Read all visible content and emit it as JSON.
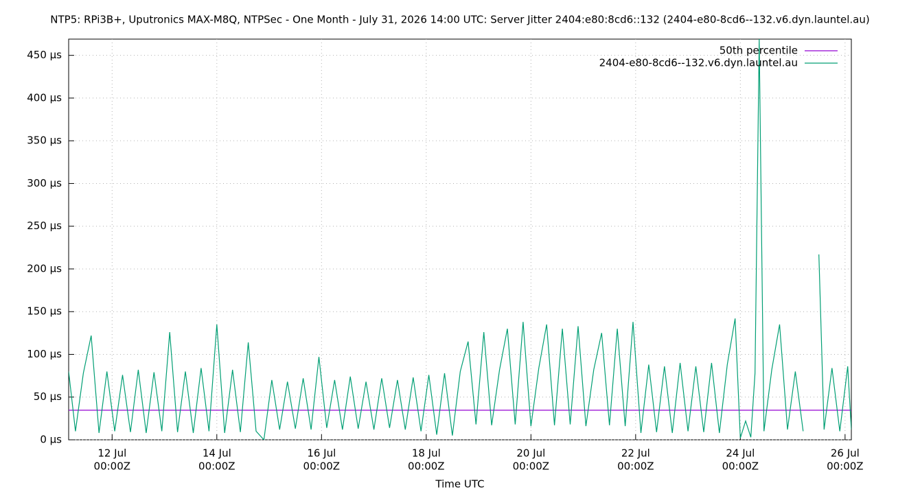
{
  "chart_data": {
    "type": "line",
    "title": "NTP5: RPi3B+, Uputronics MAX-M8Q, NTPSec - One Month - July 31, 2026 14:00 UTC: Server Jitter 2404:e80:8cd6::132 (2404-e80-8cd6--132.v6.dyn.launtel.au)",
    "x_label": "Time UTC",
    "xlim": [
      11.17,
      26.12
    ],
    "xticks": [
      {
        "value": 12,
        "label": [
          "12 Jul",
          "00:00Z"
        ]
      },
      {
        "value": 14,
        "label": [
          "14 Jul",
          "00:00Z"
        ]
      },
      {
        "value": 16,
        "label": [
          "16 Jul",
          "00:00Z"
        ]
      },
      {
        "value": 18,
        "label": [
          "18 Jul",
          "00:00Z"
        ]
      },
      {
        "value": 20,
        "label": [
          "20 Jul",
          "00:00Z"
        ]
      },
      {
        "value": 22,
        "label": [
          "22 Jul",
          "00:00Z"
        ]
      },
      {
        "value": 24,
        "label": [
          "24 Jul",
          "00:00Z"
        ]
      },
      {
        "value": 26,
        "label": [
          "26 Jul",
          "00:00Z"
        ]
      }
    ],
    "ylim": [
      0,
      469
    ],
    "yticks": [
      {
        "value": 0,
        "label": "0 µs"
      },
      {
        "value": 50,
        "label": "50 µs"
      },
      {
        "value": 100,
        "label": "100 µs"
      },
      {
        "value": 150,
        "label": "150 µs"
      },
      {
        "value": 200,
        "label": "200 µs"
      },
      {
        "value": 250,
        "label": "250 µs"
      },
      {
        "value": 300,
        "label": "300 µs"
      },
      {
        "value": 350,
        "label": "350 µs"
      },
      {
        "value": 400,
        "label": "400 µs"
      },
      {
        "value": 450,
        "label": "450 µs"
      }
    ],
    "grid": true,
    "legend": "upper right",
    "series": [
      {
        "name": "50th percentile",
        "color": "#9400d3",
        "x": [
          11.17,
          26.12
        ],
        "values": [
          34.6,
          34.6
        ]
      },
      {
        "name": "2404-e80-8cd6--132.v6.dyn.launtel.au",
        "color": "#009e73",
        "x": [
          11.17,
          11.3,
          11.45,
          11.6,
          11.75,
          11.9,
          12.05,
          12.2,
          12.35,
          12.5,
          12.65,
          12.8,
          12.95,
          13.1,
          13.25,
          13.4,
          13.55,
          13.7,
          13.85,
          14.0,
          14.15,
          14.3,
          14.45,
          14.6,
          14.75,
          14.9,
          15.05,
          15.2,
          15.35,
          15.5,
          15.65,
          15.8,
          15.95,
          16.1,
          16.25,
          16.4,
          16.55,
          16.7,
          16.85,
          17.0,
          17.15,
          17.3,
          17.45,
          17.6,
          17.75,
          17.9,
          18.05,
          18.2,
          18.35,
          18.5,
          18.65,
          18.8,
          18.95,
          19.1,
          19.25,
          19.4,
          19.55,
          19.7,
          19.85,
          20.0,
          20.15,
          20.3,
          20.45,
          20.6,
          20.75,
          20.9,
          21.05,
          21.2,
          21.35,
          21.5,
          21.65,
          21.8,
          21.95,
          22.1,
          22.25,
          22.4,
          22.55,
          22.7,
          22.85,
          23.0,
          23.15,
          23.3,
          23.45,
          23.6,
          23.75,
          23.9,
          24.0,
          24.1,
          24.2,
          24.28,
          24.36,
          24.45,
          24.6,
          24.75,
          24.9,
          25.05,
          25.2,
          25.3,
          25.5,
          25.6,
          25.75,
          25.9,
          26.05,
          26.12
        ],
        "values": [
          80,
          10,
          78,
          122,
          8,
          80,
          10,
          76,
          9,
          82,
          8,
          79,
          10,
          126,
          9,
          80,
          8,
          84,
          10,
          135,
          8,
          82,
          9,
          114,
          10,
          0,
          70,
          12,
          68,
          13,
          72,
          12,
          97,
          14,
          70,
          12,
          74,
          13,
          68,
          12,
          72,
          14,
          70,
          12,
          73,
          10,
          76,
          6,
          78,
          5,
          80,
          115,
          18,
          126,
          17,
          82,
          130,
          18,
          138,
          16,
          84,
          135,
          17,
          130,
          18,
          133,
          16,
          82,
          125,
          17,
          130,
          16,
          138,
          8,
          88,
          9,
          86,
          8,
          90,
          10,
          86,
          9,
          90,
          8,
          88,
          142,
          2,
          22,
          3,
          78,
          469,
          10,
          82,
          135,
          12,
          80,
          10,
          null,
          217,
          12,
          84,
          10,
          86,
          12
        ]
      }
    ]
  }
}
